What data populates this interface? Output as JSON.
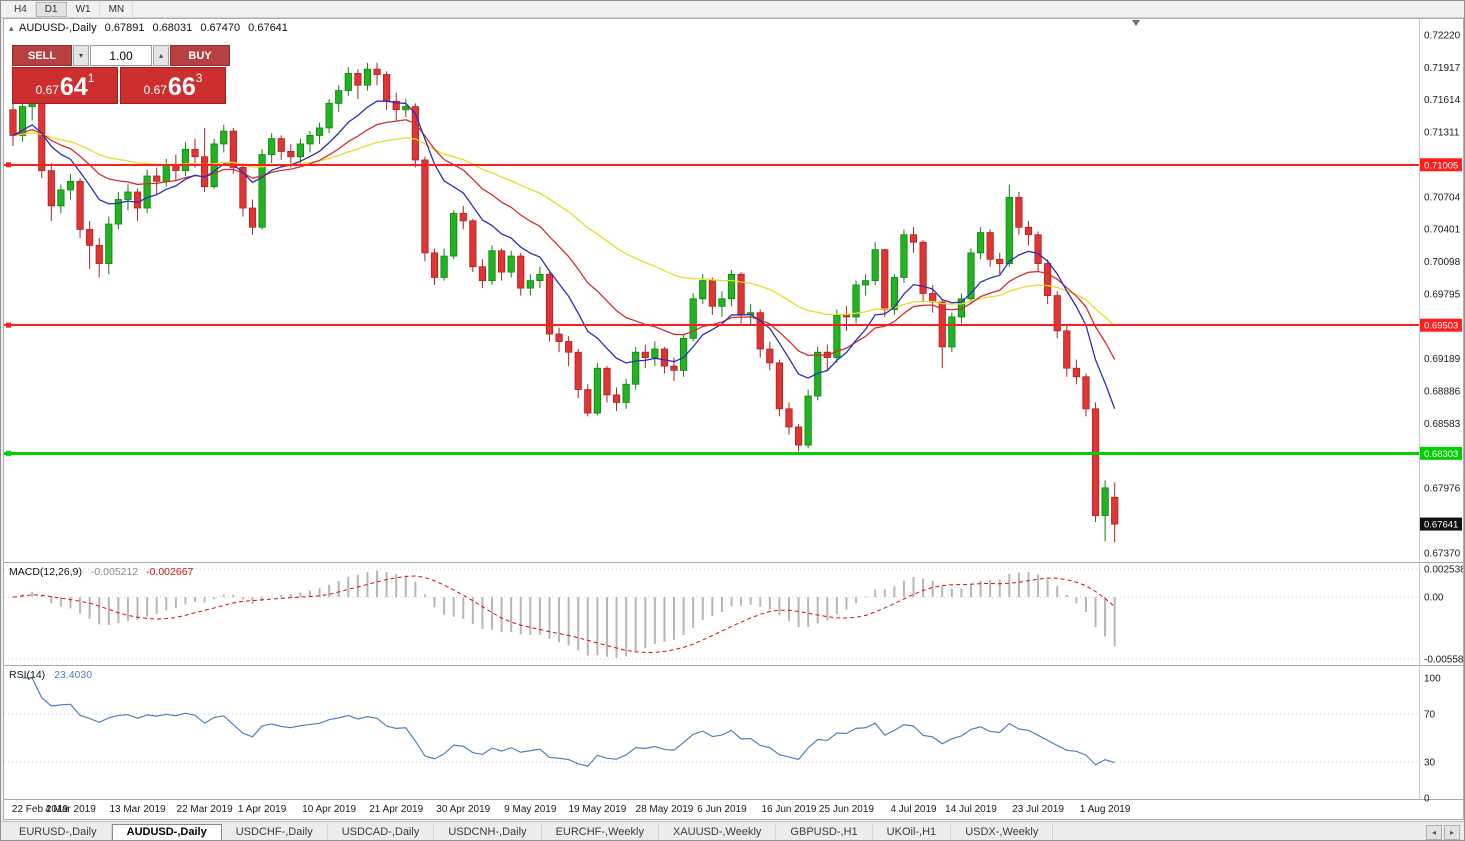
{
  "toolbar": {
    "timeframes": [
      {
        "label": "H4",
        "active": false
      },
      {
        "label": "D1",
        "active": true
      },
      {
        "label": "W1",
        "active": false
      },
      {
        "label": "MN",
        "active": false
      }
    ]
  },
  "chart_header": {
    "symbol": "AUDUSD-,Daily",
    "open": "0.67891",
    "high": "0.68031",
    "low": "0.67470",
    "close": "0.67641"
  },
  "trade_panel": {
    "sell_label": "SELL",
    "buy_label": "BUY",
    "volume": "1.00",
    "sell_price_small": "0.67",
    "sell_price_big": "64",
    "sell_price_sup": "1",
    "buy_price_small": "0.67",
    "buy_price_big": "66",
    "buy_price_sup": "3"
  },
  "indicator_labels": {
    "macd_name": "MACD(12,26,9)",
    "macd_value": "-0.005212",
    "macd_signal_value": "-0.002667",
    "rsi_name": "RSI(14)",
    "rsi_value": "23.4030"
  },
  "tab_bar": {
    "tabs": [
      {
        "label": "EURUSD-,Daily",
        "active": false
      },
      {
        "label": "AUDUSD-,Daily",
        "active": true
      },
      {
        "label": "USDCHF-,Daily",
        "active": false
      },
      {
        "label": "USDCAD-,Daily",
        "active": false
      },
      {
        "label": "USDCNH-,Daily",
        "active": false
      },
      {
        "label": "EURCHF-,Weekly",
        "active": false
      },
      {
        "label": "XAUUSD-,Weekly",
        "active": false
      },
      {
        "label": "GBPUSD-,H1",
        "active": false
      },
      {
        "label": "UKOil-,H1",
        "active": false
      },
      {
        "label": "USDX-,Weekly",
        "active": false
      }
    ],
    "scroll_left_icon": "◂",
    "scroll_right_icon": "▸"
  },
  "chart_data": {
    "type": "candlestick",
    "symbol": "AUDUSD",
    "period": "Daily",
    "y_axis": {
      "max": 0.7222,
      "min": 0.6737,
      "label_start": 0.7222,
      "label_step": 0.0030312,
      "label_count": 17
    },
    "x_ticks": [
      {
        "i": 0,
        "label": "22 Feb 2019"
      },
      {
        "i": 6,
        "label": "4 Mar 2019"
      },
      {
        "i": 13,
        "label": "13 Mar 2019"
      },
      {
        "i": 20,
        "label": "22 Mar 2019"
      },
      {
        "i": 26,
        "label": "1 Apr 2019"
      },
      {
        "i": 33,
        "label": "10 Apr 2019"
      },
      {
        "i": 40,
        "label": "21 Apr 2019"
      },
      {
        "i": 47,
        "label": "30 Apr 2019"
      },
      {
        "i": 54,
        "label": "9 May 2019"
      },
      {
        "i": 61,
        "label": "19 May 2019"
      },
      {
        "i": 68,
        "label": "28 May 2019"
      },
      {
        "i": 74,
        "label": "6 Jun 2019"
      },
      {
        "i": 81,
        "label": "16 Jun 2019"
      },
      {
        "i": 87,
        "label": "25 Jun 2019"
      },
      {
        "i": 94,
        "label": "4 Jul 2019"
      },
      {
        "i": 100,
        "label": "14 Jul 2019"
      },
      {
        "i": 107,
        "label": "23 Jul 2019"
      },
      {
        "i": 114,
        "label": "1 Aug 2019"
      }
    ],
    "hlines": [
      {
        "price": 0.71005,
        "label": "0.71005",
        "color": "#ff1e1e",
        "width": 2
      },
      {
        "price": 0.69503,
        "label": "0.69503",
        "color": "#ff1e1e",
        "width": 2
      },
      {
        "price": 0.68303,
        "label": "0.68303",
        "color": "#00cf00",
        "width": 3
      }
    ],
    "bid_marker": {
      "price": 0.67641,
      "label": "0.67641",
      "bg": "#111111"
    },
    "colors": {
      "up": "#22b322",
      "down": "#e23434",
      "up_stroke": "#108010",
      "down_stroke": "#a82424",
      "wick_up": "#108010",
      "wick_down": "#a82424"
    },
    "moving_averages": [
      {
        "period": 10,
        "color": "#2d2db4"
      },
      {
        "period": 20,
        "color": "#d03030"
      },
      {
        "period": 45,
        "color": "#e8dc28"
      }
    ],
    "macd": {
      "fast": 12,
      "slow": 26,
      "signal": 9,
      "hist_color": "#b6b6b6",
      "signal_color": "#d01010",
      "range": {
        "max": 0.002538,
        "min": -0.005581
      },
      "axis": [
        {
          "v": 0.002538,
          "label": "0.002538"
        },
        {
          "v": 0,
          "label": "0.00"
        },
        {
          "v": -0.005581,
          "label": "-0.005581"
        }
      ]
    },
    "rsi": {
      "period": 14,
      "color": "#4f81bd",
      "levels": [
        70,
        30
      ],
      "axis": [
        {
          "v": 100,
          "label": "100"
        },
        {
          "v": 70,
          "label": "70"
        },
        {
          "v": 30,
          "label": "30"
        },
        {
          "v": 0,
          "label": "0"
        }
      ]
    },
    "candles": [
      [
        0.7152,
        0.7165,
        0.7118,
        0.7128
      ],
      [
        0.7128,
        0.7158,
        0.7122,
        0.7155
      ],
      [
        0.7155,
        0.7168,
        0.7142,
        0.716
      ],
      [
        0.716,
        0.7163,
        0.7088,
        0.7095
      ],
      [
        0.7095,
        0.7102,
        0.7048,
        0.7062
      ],
      [
        0.7062,
        0.7082,
        0.7055,
        0.7077
      ],
      [
        0.7077,
        0.7092,
        0.7068,
        0.7085
      ],
      [
        0.7085,
        0.7088,
        0.7032,
        0.704
      ],
      [
        0.704,
        0.7048,
        0.7003,
        0.7025
      ],
      [
        0.7025,
        0.7032,
        0.6995,
        0.7008
      ],
      [
        0.7008,
        0.7052,
        0.6998,
        0.7045
      ],
      [
        0.7045,
        0.7075,
        0.704,
        0.7068
      ],
      [
        0.7068,
        0.7082,
        0.7058,
        0.7075
      ],
      [
        0.7075,
        0.7078,
        0.7048,
        0.706
      ],
      [
        0.706,
        0.7096,
        0.7055,
        0.709
      ],
      [
        0.709,
        0.7098,
        0.7072,
        0.7085
      ],
      [
        0.7085,
        0.7106,
        0.708,
        0.71
      ],
      [
        0.71,
        0.711,
        0.7085,
        0.7095
      ],
      [
        0.7095,
        0.7122,
        0.709,
        0.7115
      ],
      [
        0.7115,
        0.7125,
        0.7098,
        0.7108
      ],
      [
        0.7108,
        0.7135,
        0.7075,
        0.708
      ],
      [
        0.708,
        0.7125,
        0.7078,
        0.712
      ],
      [
        0.712,
        0.7138,
        0.7112,
        0.7132
      ],
      [
        0.7132,
        0.7135,
        0.7092,
        0.7098
      ],
      [
        0.7098,
        0.7102,
        0.7052,
        0.706
      ],
      [
        0.706,
        0.7068,
        0.7035,
        0.7042
      ],
      [
        0.7042,
        0.7115,
        0.704,
        0.711
      ],
      [
        0.711,
        0.713,
        0.7102,
        0.7125
      ],
      [
        0.7125,
        0.7128,
        0.7105,
        0.7113
      ],
      [
        0.7113,
        0.712,
        0.7098,
        0.7108
      ],
      [
        0.7108,
        0.7125,
        0.7102,
        0.712
      ],
      [
        0.712,
        0.7132,
        0.7112,
        0.7128
      ],
      [
        0.7128,
        0.714,
        0.712,
        0.7135
      ],
      [
        0.7135,
        0.7162,
        0.713,
        0.7158
      ],
      [
        0.7158,
        0.7175,
        0.715,
        0.717
      ],
      [
        0.717,
        0.7192,
        0.7165,
        0.7186
      ],
      [
        0.7186,
        0.719,
        0.7162,
        0.7175
      ],
      [
        0.7175,
        0.7196,
        0.717,
        0.719
      ],
      [
        0.719,
        0.7196,
        0.7175,
        0.7185
      ],
      [
        0.7185,
        0.7188,
        0.7152,
        0.716
      ],
      [
        0.716,
        0.7168,
        0.7142,
        0.7152
      ],
      [
        0.7152,
        0.7162,
        0.7145,
        0.7155
      ],
      [
        0.7155,
        0.7158,
        0.7098,
        0.7105
      ],
      [
        0.7105,
        0.7108,
        0.701,
        0.7018
      ],
      [
        0.7018,
        0.7022,
        0.6988,
        0.6995
      ],
      [
        0.6995,
        0.7022,
        0.6992,
        0.7015
      ],
      [
        0.7015,
        0.7058,
        0.7012,
        0.7055
      ],
      [
        0.7055,
        0.7062,
        0.704,
        0.7048
      ],
      [
        0.7048,
        0.705,
        0.7,
        0.7005
      ],
      [
        0.7005,
        0.7012,
        0.6985,
        0.6992
      ],
      [
        0.6992,
        0.7025,
        0.6988,
        0.702
      ],
      [
        0.702,
        0.7022,
        0.6992,
        0.7
      ],
      [
        0.7,
        0.702,
        0.6995,
        0.7015
      ],
      [
        0.7015,
        0.7018,
        0.6978,
        0.6985
      ],
      [
        0.6985,
        0.6998,
        0.6978,
        0.6992
      ],
      [
        0.6992,
        0.7005,
        0.6985,
        0.6998
      ],
      [
        0.6998,
        0.7,
        0.6935,
        0.6942
      ],
      [
        0.6942,
        0.6948,
        0.6925,
        0.6935
      ],
      [
        0.6935,
        0.694,
        0.6912,
        0.6925
      ],
      [
        0.6925,
        0.6928,
        0.6882,
        0.689
      ],
      [
        0.689,
        0.6895,
        0.6865,
        0.6868
      ],
      [
        0.6868,
        0.6915,
        0.6866,
        0.691
      ],
      [
        0.691,
        0.6912,
        0.6878,
        0.6885
      ],
      [
        0.6885,
        0.6892,
        0.687,
        0.6878
      ],
      [
        0.6878,
        0.69,
        0.6872,
        0.6895
      ],
      [
        0.6895,
        0.693,
        0.689,
        0.6925
      ],
      [
        0.6925,
        0.6932,
        0.691,
        0.692
      ],
      [
        0.692,
        0.6935,
        0.6912,
        0.6928
      ],
      [
        0.6928,
        0.693,
        0.6905,
        0.6912
      ],
      [
        0.6912,
        0.692,
        0.6898,
        0.6908
      ],
      [
        0.6908,
        0.6942,
        0.6902,
        0.6938
      ],
      [
        0.6938,
        0.698,
        0.6935,
        0.6975
      ],
      [
        0.6975,
        0.6998,
        0.697,
        0.6992
      ],
      [
        0.6992,
        0.6995,
        0.696,
        0.6968
      ],
      [
        0.6968,
        0.6982,
        0.6958,
        0.6975
      ],
      [
        0.6975,
        0.7002,
        0.6968,
        0.6998
      ],
      [
        0.6998,
        0.7,
        0.6952,
        0.696
      ],
      [
        0.696,
        0.697,
        0.695,
        0.6962
      ],
      [
        0.6962,
        0.6965,
        0.692,
        0.6928
      ],
      [
        0.6928,
        0.6935,
        0.6908,
        0.6915
      ],
      [
        0.6915,
        0.6918,
        0.6865,
        0.6872
      ],
      [
        0.6872,
        0.6878,
        0.6848,
        0.6855
      ],
      [
        0.6855,
        0.6858,
        0.6832,
        0.6838
      ],
      [
        0.6838,
        0.689,
        0.6835,
        0.6884
      ],
      [
        0.6884,
        0.693,
        0.688,
        0.6925
      ],
      [
        0.6925,
        0.6932,
        0.6908,
        0.692
      ],
      [
        0.692,
        0.6965,
        0.6915,
        0.696
      ],
      [
        0.696,
        0.6968,
        0.6945,
        0.6958
      ],
      [
        0.6958,
        0.6992,
        0.6952,
        0.6988
      ],
      [
        0.6988,
        0.6998,
        0.6978,
        0.6992
      ],
      [
        0.6992,
        0.7028,
        0.6988,
        0.7021
      ],
      [
        0.7021,
        0.7022,
        0.6958,
        0.6965
      ],
      [
        0.6965,
        0.6998,
        0.696,
        0.6995
      ],
      [
        0.6995,
        0.704,
        0.699,
        0.7035
      ],
      [
        0.7035,
        0.7042,
        0.7018,
        0.7028
      ],
      [
        0.7028,
        0.703,
        0.6972,
        0.698
      ],
      [
        0.698,
        0.6988,
        0.6962,
        0.6972
      ],
      [
        0.6972,
        0.6975,
        0.691,
        0.693
      ],
      [
        0.693,
        0.6962,
        0.6925,
        0.6958
      ],
      [
        0.6958,
        0.698,
        0.6952,
        0.6975
      ],
      [
        0.6975,
        0.7022,
        0.697,
        0.7018
      ],
      [
        0.7018,
        0.7042,
        0.7012,
        0.7037
      ],
      [
        0.7037,
        0.704,
        0.7005,
        0.7012
      ],
      [
        0.7012,
        0.7018,
        0.6998,
        0.7008
      ],
      [
        0.7008,
        0.7082,
        0.7005,
        0.707
      ],
      [
        0.707,
        0.7075,
        0.7035,
        0.7042
      ],
      [
        0.7042,
        0.7048,
        0.7025,
        0.7035
      ],
      [
        0.7035,
        0.7038,
        0.7,
        0.7008
      ],
      [
        0.7008,
        0.7012,
        0.697,
        0.6978
      ],
      [
        0.6978,
        0.6982,
        0.6938,
        0.6945
      ],
      [
        0.6945,
        0.695,
        0.6902,
        0.691
      ],
      [
        0.691,
        0.6918,
        0.6895,
        0.6902
      ],
      [
        0.6902,
        0.6905,
        0.6865,
        0.6872
      ],
      [
        0.6872,
        0.6878,
        0.6766,
        0.6772
      ],
      [
        0.6772,
        0.6805,
        0.6748,
        0.6798
      ],
      [
        0.67891,
        0.68031,
        0.6747,
        0.67641
      ]
    ]
  }
}
